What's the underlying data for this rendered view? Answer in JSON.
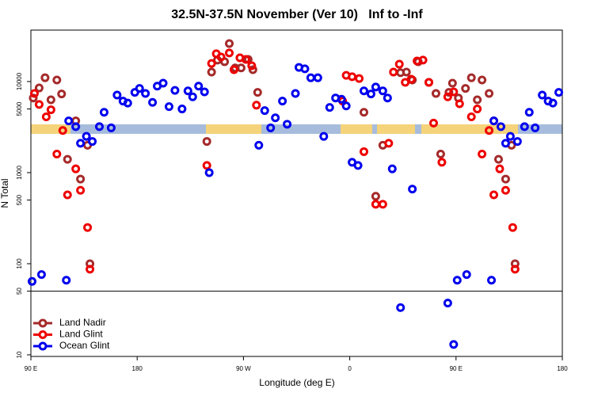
{
  "chart_data": {
    "type": "scatter",
    "title": "32.5N-37.5N November (Ver 10)   Inf to -Inf",
    "x_label": "Longitude (deg E)",
    "y_label": "N Total",
    "xlim": [
      90,
      540
    ],
    "xticks": [
      {
        "value": 90,
        "label": "90 E"
      },
      180,
      {
        "value": 270,
        "label": "90 W"
      },
      {
        "value": 360,
        "label": "0"
      },
      {
        "value": 450,
        "label": "90 E"
      },
      {
        "value": 540,
        "label": "180"
      }
    ],
    "ylim": [
      9.6,
      36700
    ],
    "y_scale": "log",
    "yticks": [
      10,
      50,
      100,
      500,
      1000,
      5000,
      10000
    ],
    "reference_line": 50,
    "legend": "bottomleft",
    "series": [
      {
        "name": "Land Nadir",
        "color": "#a52a2a",
        "x": [
          92,
          97,
          102,
          107,
          112,
          116,
          121,
          128,
          132,
          138,
          140,
          239,
          243,
          248,
          254,
          258,
          263,
          268,
          274,
          278,
          282,
          372,
          382,
          388,
          403,
          408,
          413,
          418,
          427,
          433,
          437,
          444,
          447,
          452,
          458,
          463,
          468,
          472,
          478,
          482,
          486,
          492,
          497,
          500
        ],
        "values": [
          6600,
          8500,
          11000,
          6300,
          10400,
          7300,
          1400,
          3700,
          850,
          2000,
          100,
          2200,
          12700,
          17200,
          16500,
          26100,
          14100,
          14100,
          17500,
          13500,
          7600,
          4600,
          550,
          2000,
          12500,
          12700,
          10400,
          16500,
          9800,
          7400,
          1600,
          7600,
          9600,
          6600,
          8400,
          11000,
          6300,
          10400,
          7400,
          3700,
          1400,
          850,
          2000,
          100
        ]
      },
      {
        "name": "Land Glint",
        "color": "#ee0000",
        "x": [
          93,
          97,
          103,
          107,
          112,
          117,
          121,
          128,
          132,
          138,
          140,
          239,
          243,
          247,
          251,
          258,
          262,
          267,
          272,
          277,
          281,
          354,
          357,
          362,
          368,
          372,
          382,
          388,
          393,
          397,
          402,
          407,
          412,
          417,
          422,
          427,
          431,
          438,
          443,
          448,
          453,
          463,
          468,
          472,
          478,
          482,
          487,
          492,
          498,
          500
        ],
        "values": [
          7400,
          5600,
          4100,
          4900,
          1600,
          2900,
          570,
          1100,
          640,
          250,
          87,
          1200,
          15800,
          20200,
          18600,
          20600,
          13500,
          18200,
          17500,
          14900,
          5500,
          6100,
          11700,
          11300,
          10800,
          1700,
          450,
          450,
          2100,
          12700,
          15500,
          9800,
          10600,
          16800,
          17200,
          9800,
          3500,
          1300,
          6800,
          7700,
          5700,
          4100,
          5000,
          1600,
          2900,
          570,
          1100,
          640,
          250,
          87
        ]
      },
      {
        "name": "Ocean Glint",
        "color": "#0000ee",
        "x": [
          91,
          99,
          120,
          122,
          128,
          132,
          137,
          142,
          148,
          152,
          158,
          163,
          168,
          172,
          178,
          182,
          187,
          193,
          197,
          202,
          207,
          212,
          218,
          223,
          227,
          232,
          237,
          241,
          283,
          288,
          293,
          297,
          303,
          307,
          314,
          317,
          322,
          327,
          333,
          338,
          343,
          348,
          353,
          357,
          362,
          367,
          372,
          378,
          382,
          388,
          392,
          396,
          403,
          413,
          443,
          448,
          451,
          459,
          480,
          482,
          488,
          492,
          496,
          502,
          508,
          512,
          517,
          523,
          528,
          532,
          537
        ],
        "values": [
          64,
          76,
          66,
          3700,
          3200,
          2100,
          2500,
          2200,
          3200,
          4600,
          3100,
          7100,
          6100,
          5800,
          7600,
          8400,
          7400,
          5900,
          8900,
          9600,
          5300,
          8000,
          5000,
          7900,
          6800,
          8900,
          7700,
          1000,
          2000,
          4800,
          3100,
          4000,
          6100,
          3400,
          7400,
          14300,
          13800,
          11000,
          11000,
          2500,
          5200,
          6600,
          6400,
          5400,
          1300,
          1200,
          7900,
          7300,
          8700,
          7900,
          6600,
          1100,
          33,
          660,
          37,
          13,
          66,
          76,
          66,
          3700,
          3200,
          2100,
          2500,
          2200,
          3200,
          4600,
          3100,
          7100,
          6100,
          5800,
          7600
        ]
      }
    ]
  }
}
